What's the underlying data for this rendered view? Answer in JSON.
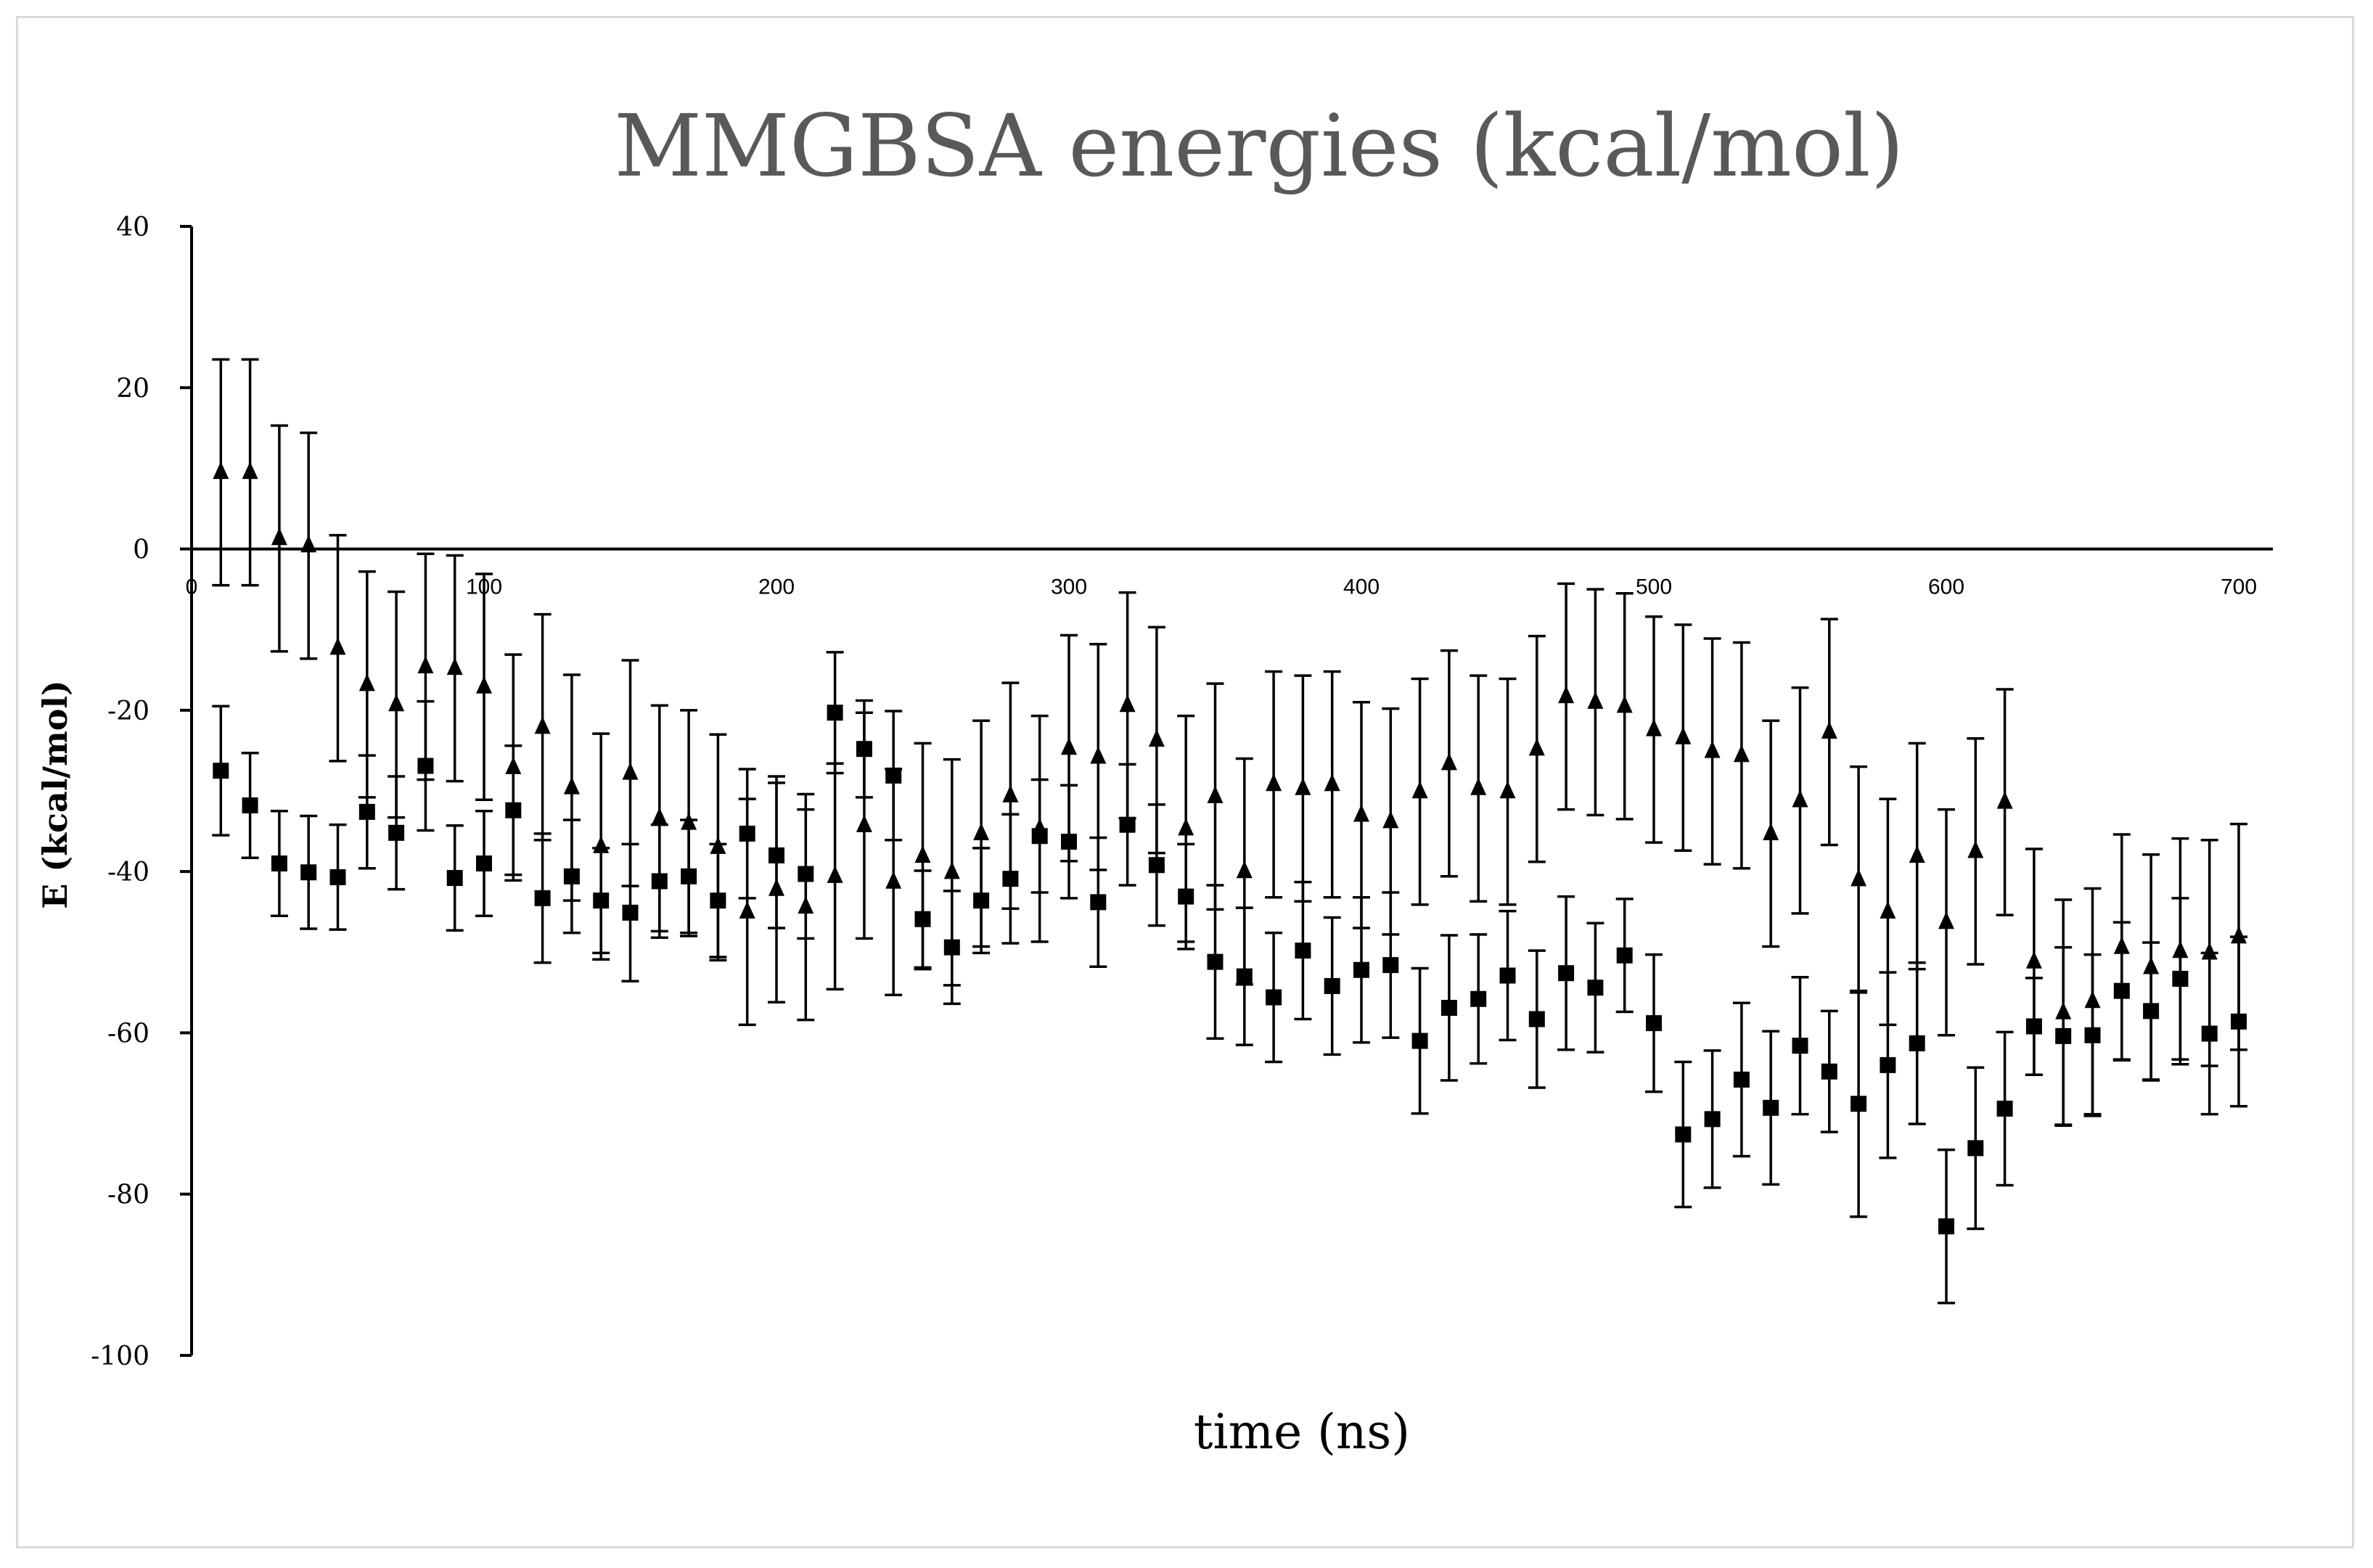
{
  "chart_data": {
    "type": "scatter",
    "title": "MMGBSA energies (kcal/mol)",
    "xlabel": "time (ns)",
    "ylabel": "E (kcal/mol)",
    "xlim": [
      0,
      700
    ],
    "ylim": [
      -100,
      40
    ],
    "x_ticks": [
      "0",
      "100",
      "200",
      "300",
      "400",
      "500",
      "600",
      "700"
    ],
    "y_ticks": [
      "40",
      "20",
      "0",
      "-20",
      "-40",
      "-60",
      "-80",
      "-100"
    ],
    "grid": false,
    "legend": "none",
    "x": [
      10,
      20,
      30,
      40,
      50,
      60,
      70,
      80,
      90,
      100,
      110,
      120,
      130,
      140,
      150,
      160,
      170,
      180,
      190,
      200,
      210,
      220,
      230,
      240,
      250,
      260,
      270,
      280,
      290,
      300,
      310,
      320,
      330,
      340,
      350,
      360,
      370,
      380,
      390,
      400,
      410,
      420,
      430,
      440,
      450,
      460,
      470,
      480,
      490,
      500,
      510,
      520,
      530,
      540,
      550,
      560,
      570,
      580,
      590,
      600,
      610,
      620,
      630,
      640,
      650,
      660,
      670,
      680,
      690,
      700
    ],
    "series": [
      {
        "marker": "triangle",
        "color": "#000000",
        "values": [
          9.5,
          9.5,
          1.3,
          0.4,
          -12.3,
          -16.8,
          -19.3,
          -14.6,
          -14.8,
          -17.1,
          -27.1,
          -22.1,
          -29.6,
          -36.9,
          -27.8,
          -33.4,
          -34.0,
          -37.0,
          -45.0,
          -42.2,
          -44.4,
          -40.6,
          -34.3,
          -41.3,
          -38.1,
          -40.1,
          -35.3,
          -30.6,
          -34.7,
          -24.7,
          -25.8,
          -19.4,
          -23.7,
          -34.7,
          -30.7,
          -40.0,
          -29.2,
          -29.7,
          -29.2,
          -33.0,
          -33.8,
          -30.1,
          -26.6,
          -29.7,
          -30.1,
          -24.8,
          -18.3,
          -19.0,
          -19.5,
          -22.4,
          -23.4,
          -25.1,
          -25.6,
          -35.3,
          -31.2,
          -22.7,
          -41.0,
          -45.0,
          -38.1,
          -46.3,
          -37.5,
          -31.4,
          -51.2,
          -57.5,
          -56.1,
          -49.4,
          -51.9,
          -49.9,
          -50.1,
          -48.1
        ],
        "errors": [
          14,
          14,
          14,
          14,
          14,
          14,
          14,
          14,
          14,
          14,
          14,
          14,
          14,
          14,
          14,
          14,
          14,
          14,
          14,
          14,
          14,
          14,
          14,
          14,
          14,
          14,
          14,
          14,
          14,
          14,
          14,
          14,
          14,
          14,
          14,
          14,
          14,
          14,
          14,
          14,
          14,
          14,
          14,
          14,
          14,
          14,
          14,
          14,
          14,
          14,
          14,
          14,
          14,
          14,
          14,
          14,
          14,
          14,
          14,
          14,
          14,
          14,
          14,
          14,
          14,
          14,
          14,
          14,
          14,
          14
        ]
      },
      {
        "marker": "square",
        "color": "#000000",
        "values": [
          -27.5,
          -31.8,
          -39.0,
          -40.1,
          -40.7,
          -32.6,
          -35.2,
          -26.9,
          -40.8,
          -39.0,
          -32.4,
          -43.3,
          -40.6,
          -43.6,
          -45.1,
          -41.2,
          -40.6,
          -43.6,
          -35.3,
          -38.0,
          -40.3,
          -20.3,
          -24.8,
          -28.1,
          -45.9,
          -49.4,
          -43.6,
          -40.9,
          -35.6,
          -36.3,
          -43.8,
          -34.2,
          -39.2,
          -43.1,
          -51.2,
          -53.0,
          -55.6,
          -49.8,
          -54.2,
          -52.2,
          -51.6,
          -61.0,
          -56.9,
          -55.8,
          -52.9,
          -58.3,
          -52.6,
          -54.4,
          -50.4,
          -58.8,
          -72.6,
          -70.7,
          -65.8,
          -69.3,
          -61.6,
          -64.8,
          -68.8,
          -64.0,
          -61.3,
          -84.0,
          -74.3,
          -69.4,
          -59.2,
          -60.4,
          -60.3,
          -54.8,
          -57.3,
          -53.3,
          -60.1,
          -58.6
        ],
        "errors": [
          8,
          6.5,
          6.5,
          7,
          6.5,
          7,
          7,
          8,
          6.5,
          6.5,
          8,
          8,
          7,
          6.5,
          8.5,
          7,
          7,
          7,
          8,
          9,
          8,
          7.5,
          6,
          8,
          6,
          7,
          6.5,
          8,
          7,
          7,
          8,
          7.5,
          7.5,
          6.5,
          9.5,
          8.5,
          8,
          8.5,
          8.5,
          9,
          9,
          9,
          9,
          8,
          8,
          8.5,
          9.5,
          8,
          7,
          8.5,
          9,
          8.5,
          9.5,
          9.5,
          8.5,
          7.5,
          14,
          11.5,
          10,
          9.5,
          10,
          9.5,
          6,
          11,
          10,
          8.5,
          8.5,
          10,
          10,
          10.5
        ]
      }
    ]
  }
}
